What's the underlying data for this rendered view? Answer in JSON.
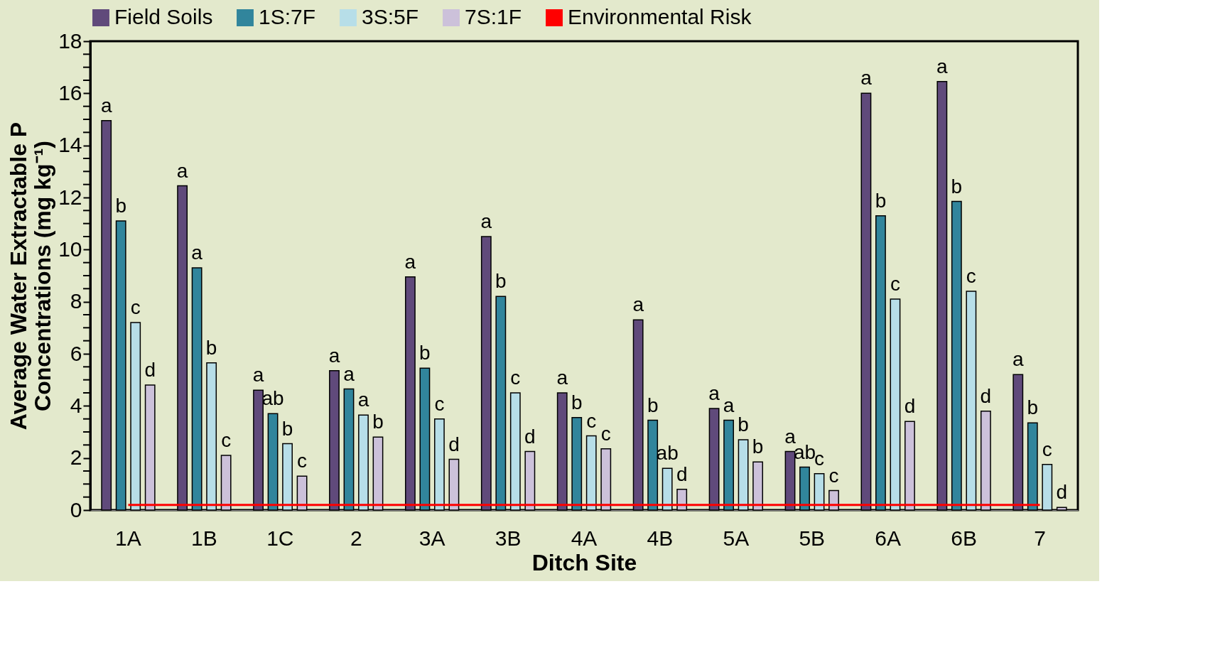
{
  "chart_data": {
    "type": "bar",
    "xlabel": "Ditch Site",
    "ylabel": "Average Water Extractable P Concentrations (mg kg⁻¹)",
    "categories": [
      "1A",
      "1B",
      "1C",
      "2",
      "3A",
      "3B",
      "4A",
      "4B",
      "5A",
      "5B",
      "6A",
      "6B",
      "7"
    ],
    "series": [
      {
        "name": "Field Soils",
        "color": "#604a7b",
        "values": [
          14.95,
          12.45,
          4.6,
          5.35,
          8.95,
          10.5,
          4.5,
          7.3,
          3.9,
          2.25,
          16.0,
          16.45,
          5.2
        ],
        "value_labels": [
          "a",
          "a",
          "a",
          "a",
          "a",
          "a",
          "a",
          "a",
          "a",
          "a",
          "a",
          "a",
          "a"
        ]
      },
      {
        "name": "1S:7F",
        "color": "#31859c",
        "values": [
          11.1,
          9.3,
          3.7,
          4.65,
          5.45,
          8.2,
          3.55,
          3.45,
          3.45,
          1.65,
          11.3,
          11.85,
          3.35
        ],
        "value_labels": [
          "b",
          "a",
          "ab",
          "a",
          "b",
          "b",
          "b",
          "b",
          "a",
          "ab",
          "b",
          "b",
          "b"
        ]
      },
      {
        "name": "3S:5F",
        "color": "#b7dee8",
        "values": [
          7.2,
          5.65,
          2.55,
          3.65,
          3.5,
          4.5,
          2.85,
          1.6,
          2.7,
          1.4,
          8.1,
          8.4,
          1.75
        ],
        "value_labels": [
          "c",
          "b",
          "b",
          "a",
          "c",
          "c",
          "c",
          "ab",
          "b",
          "c",
          "c",
          "c",
          "c"
        ]
      },
      {
        "name": "7S:1F",
        "color": "#ccc1da",
        "values": [
          4.8,
          2.1,
          1.3,
          2.8,
          1.95,
          2.25,
          2.35,
          0.8,
          1.85,
          0.75,
          3.4,
          3.8,
          0.1
        ],
        "value_labels": [
          "d",
          "c",
          "c",
          "b",
          "d",
          "d",
          "c",
          "d",
          "b",
          "c",
          "d",
          "d",
          "d"
        ]
      },
      {
        "name": "Environmental Risk",
        "type": "line",
        "color": "#ff0000",
        "values": [
          0.2,
          0.2,
          0.2,
          0.2,
          0.2,
          0.2,
          0.2,
          0.2,
          0.2,
          0.2,
          0.2,
          0.2,
          0.2
        ]
      }
    ],
    "ylim": [
      0,
      18
    ],
    "yticks": [
      0,
      {
        "value": 0.5,
        "label": null
      },
      {
        "value": 1,
        "label": null
      },
      {
        "value": 1.5,
        "label": null
      },
      2,
      {
        "value": 2.5,
        "label": null
      },
      {
        "value": 3,
        "label": null
      },
      {
        "value": 3.5,
        "label": null
      },
      4,
      {
        "value": 4.5,
        "label": null
      },
      {
        "value": 5,
        "label": null
      },
      {
        "value": 5.5,
        "label": null
      },
      6,
      {
        "value": 6.5,
        "label": null
      },
      {
        "value": 7,
        "label": null
      },
      {
        "value": 7.5,
        "label": null
      },
      8,
      {
        "value": 8.5,
        "label": null
      },
      {
        "value": 9,
        "label": null
      },
      {
        "value": 9.5,
        "label": null
      },
      10,
      {
        "value": 10.5,
        "label": null
      },
      {
        "value": 11,
        "label": null
      },
      {
        "value": 11.5,
        "label": null
      },
      12,
      {
        "value": 12.5,
        "label": null
      },
      {
        "value": 13,
        "label": null
      },
      {
        "value": 13.5,
        "label": null
      },
      14,
      {
        "value": 14.5,
        "label": null
      },
      {
        "value": 15,
        "label": null
      },
      {
        "value": 15.5,
        "label": null
      },
      16,
      {
        "value": 16.5,
        "label": null
      },
      {
        "value": 17,
        "label": null
      },
      {
        "value": 17.5,
        "label": null
      },
      18
    ],
    "grid": false,
    "legend": "top"
  }
}
